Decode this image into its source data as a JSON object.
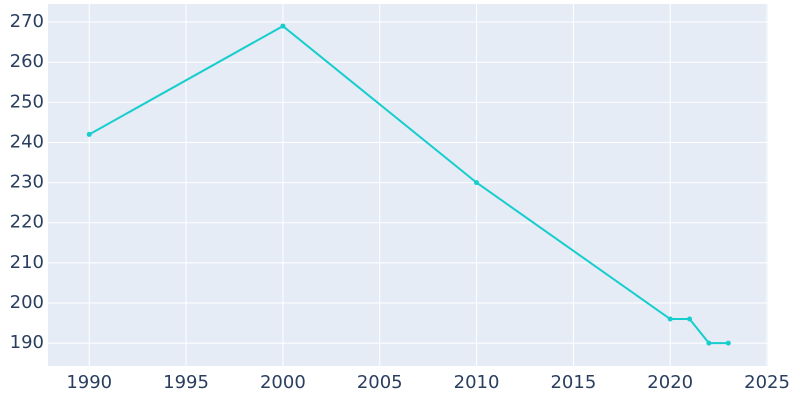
{
  "chart_data": {
    "type": "line",
    "x": [
      1990,
      2000,
      2010,
      2020,
      2021,
      2022,
      2023
    ],
    "series": [
      {
        "color": "#17cdcd",
        "values": [
          242,
          269,
          230,
          196,
          196,
          190,
          190
        ]
      }
    ],
    "xlim": [
      1987.87,
      2025.05
    ],
    "xticks": [
      1990,
      1995,
      2000,
      2005,
      2010,
      2015,
      2020,
      2025
    ],
    "ylim": [
      184.3,
      274.5
    ],
    "yticks": [
      190,
      200,
      210,
      220,
      230,
      240,
      250,
      260,
      270
    ],
    "grid": true
  }
}
